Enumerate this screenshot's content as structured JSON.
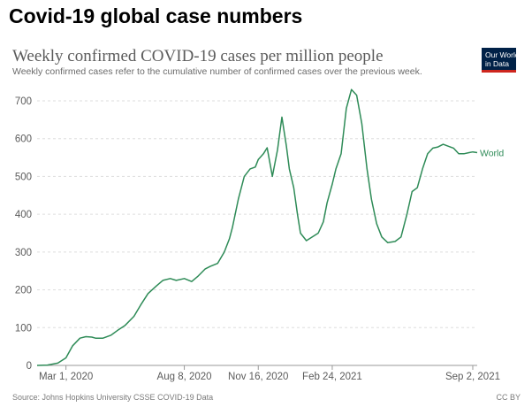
{
  "page": {
    "heading": "Covid-19 global case numbers"
  },
  "logo": {
    "line1": "Our World",
    "line2": "in Data"
  },
  "colors": {
    "series": "#2e8b57",
    "grid": "#dddddd",
    "axis": "#999999",
    "logo_bg": "#002147",
    "logo_accent": "#ce261e"
  },
  "chart_data": {
    "type": "line",
    "title": "Weekly confirmed COVID-19 cases per million people",
    "subtitle": "Weekly confirmed cases refer to the cumulative number of confirmed cases over the previous week.",
    "xlabel": "",
    "ylabel": "",
    "ylim": [
      0,
      700
    ],
    "y_ticks": [
      0,
      100,
      200,
      300,
      400,
      500,
      600,
      700
    ],
    "xlim": [
      "2020-01-22",
      "2021-09-08"
    ],
    "x_ticks": [
      {
        "date": "2020-03-01",
        "label": "Mar 1, 2020"
      },
      {
        "date": "2020-08-08",
        "label": "Aug 8, 2020"
      },
      {
        "date": "2020-11-16",
        "label": "Nov 16, 2020"
      },
      {
        "date": "2021-02-24",
        "label": "Feb 24, 2021"
      },
      {
        "date": "2021-09-02",
        "label": "Sep 2, 2021"
      }
    ],
    "grid": true,
    "series": [
      {
        "name": "World",
        "x": [
          "2020-01-22",
          "2020-02-05",
          "2020-02-19",
          "2020-03-01",
          "2020-03-10",
          "2020-03-20",
          "2020-03-28",
          "2020-04-05",
          "2020-04-10",
          "2020-04-20",
          "2020-05-01",
          "2020-05-10",
          "2020-05-20",
          "2020-06-01",
          "2020-06-10",
          "2020-06-20",
          "2020-07-01",
          "2020-07-10",
          "2020-07-20",
          "2020-07-28",
          "2020-08-08",
          "2020-08-18",
          "2020-08-26",
          "2020-09-05",
          "2020-09-12",
          "2020-09-22",
          "2020-10-01",
          "2020-10-08",
          "2020-10-12",
          "2020-10-20",
          "2020-10-28",
          "2020-11-05",
          "2020-11-12",
          "2020-11-16",
          "2020-11-23",
          "2020-11-28",
          "2020-12-05",
          "2020-12-12",
          "2020-12-18",
          "2020-12-24",
          "2020-12-28",
          "2021-01-03",
          "2021-01-08",
          "2021-01-12",
          "2021-01-20",
          "2021-01-28",
          "2021-02-05",
          "2021-02-12",
          "2021-02-17",
          "2021-02-24",
          "2021-03-01",
          "2021-03-08",
          "2021-03-15",
          "2021-03-22",
          "2021-03-29",
          "2021-04-05",
          "2021-04-12",
          "2021-04-18",
          "2021-04-25",
          "2021-05-02",
          "2021-05-10",
          "2021-05-20",
          "2021-05-28",
          "2021-06-05",
          "2021-06-12",
          "2021-06-19",
          "2021-06-26",
          "2021-07-03",
          "2021-07-10",
          "2021-07-17",
          "2021-07-24",
          "2021-07-31",
          "2021-08-07",
          "2021-08-14",
          "2021-08-21",
          "2021-08-28",
          "2021-09-02",
          "2021-09-08"
        ],
        "values": [
          0,
          1,
          6,
          20,
          52,
          72,
          76,
          75,
          72,
          72,
          80,
          93,
          106,
          130,
          160,
          190,
          210,
          225,
          230,
          225,
          230,
          222,
          235,
          255,
          262,
          270,
          300,
          335,
          365,
          440,
          500,
          520,
          525,
          545,
          560,
          576,
          500,
          570,
          657,
          580,
          520,
          470,
          400,
          350,
          330,
          340,
          350,
          380,
          430,
          480,
          520,
          560,
          680,
          730,
          715,
          640,
          520,
          440,
          375,
          340,
          325,
          328,
          340,
          400,
          460,
          470,
          520,
          560,
          575,
          578,
          585,
          580,
          575,
          560,
          560,
          563,
          565,
          563
        ]
      }
    ]
  },
  "footer": {
    "source": "Source: Johns Hopkins University CSSE COVID-19 Data",
    "license": "CC BY"
  }
}
